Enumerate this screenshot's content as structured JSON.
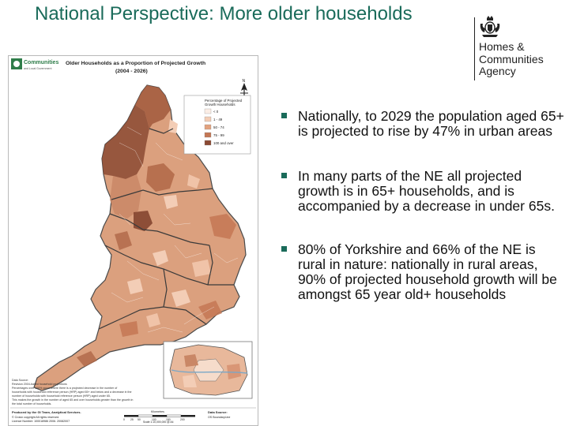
{
  "slide": {
    "title": "National Perspective: More older households"
  },
  "logo": {
    "lines": [
      "Homes &",
      "Communities",
      "Agency"
    ]
  },
  "bullets": [
    "Nationally, to 2029 the population aged 65+ is projected to rise by 47% in urban areas",
    "In many parts of the NE all projected growth is in 65+ households, and is accompanied by a decrease in under 65s.",
    "80% of Yorkshire and 66% of the NE is rural in nature: nationally in rural areas, 90% of projected household growth will be amongst 65 year old+ households"
  ],
  "map": {
    "logo_text": "Communities",
    "logo_subtext": "and Local Government",
    "title_line1": "Older Households as a Proportion of Projected Growth",
    "title_line2": "(2004 - 2026)",
    "north_label": "N",
    "legend": {
      "title_line1": "Percentage of Projected",
      "title_line2": "Growth Households",
      "items": [
        {
          "label": "< 0",
          "color": "#fbeee6"
        },
        {
          "label": "1 - 49",
          "color": "#f3cdb6"
        },
        {
          "label": "50 - 74",
          "color": "#e2a27f"
        },
        {
          "label": "75 - 99",
          "color": "#c47754"
        },
        {
          "label": "100 and over",
          "color": "#8b4a33"
        }
      ]
    },
    "notes_lines": [
      "Data Source:",
      "Revision 2004-based household projections",
      "Percentages over 100% occur where there is a projected decrease in the number of",
      "households with household reference person (HRP) aged 65+ and below and a decrease in the",
      "number of households with household reference person (HRP) aged under 65.",
      "This makes the growth in the number of aged 65 and over households greater than the growth in",
      "the total number of households."
    ],
    "credit_lines": [
      "Produced by the GI Team, Analytical Services.",
      "© Crown copyright All rights reserved.",
      "Licence Number: 100018986 2006. 20082007"
    ],
    "scale_title": "Kilometres",
    "scale_ticks": [
      "0",
      "25",
      "50",
      "100",
      "150",
      "200"
    ],
    "data_source_title": "Data Source:",
    "data_source_value": "OS BoundaryLine",
    "scale_ratio": "Scale 1:10,000,000 @ A4"
  },
  "colors": {
    "title": "#1a6b5a",
    "bullet_marker": "#1a6b5a",
    "text": "#111111",
    "map_base": "#dba07e"
  }
}
